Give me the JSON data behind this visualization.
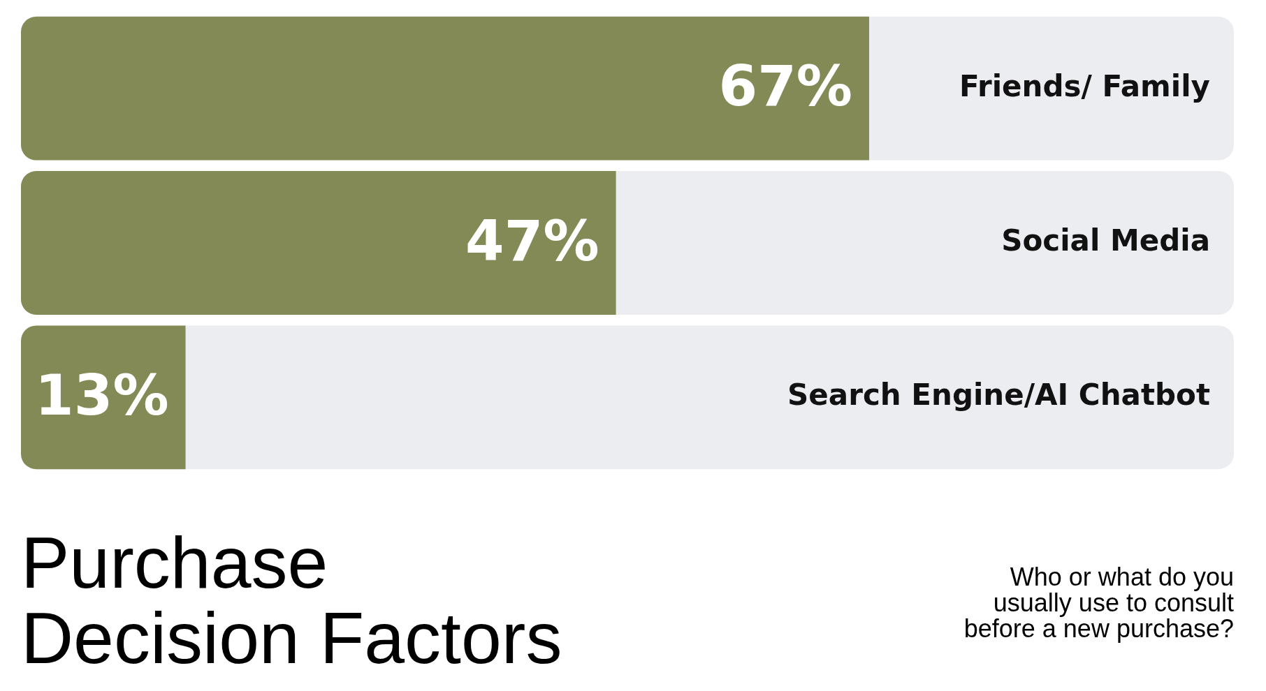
{
  "chart_data": {
    "type": "bar",
    "orientation": "horizontal",
    "title": "Purchase Decision Factors",
    "subtitle": "Who or what do you usually use to consult before a new purchase?",
    "categories": [
      "Friends/ Family",
      "Social Media",
      "Search Engine/AI Chatbot"
    ],
    "values": [
      67,
      47,
      13
    ],
    "value_labels": [
      "67%",
      "47%",
      "13%"
    ],
    "color": "#838a55"
  }
}
